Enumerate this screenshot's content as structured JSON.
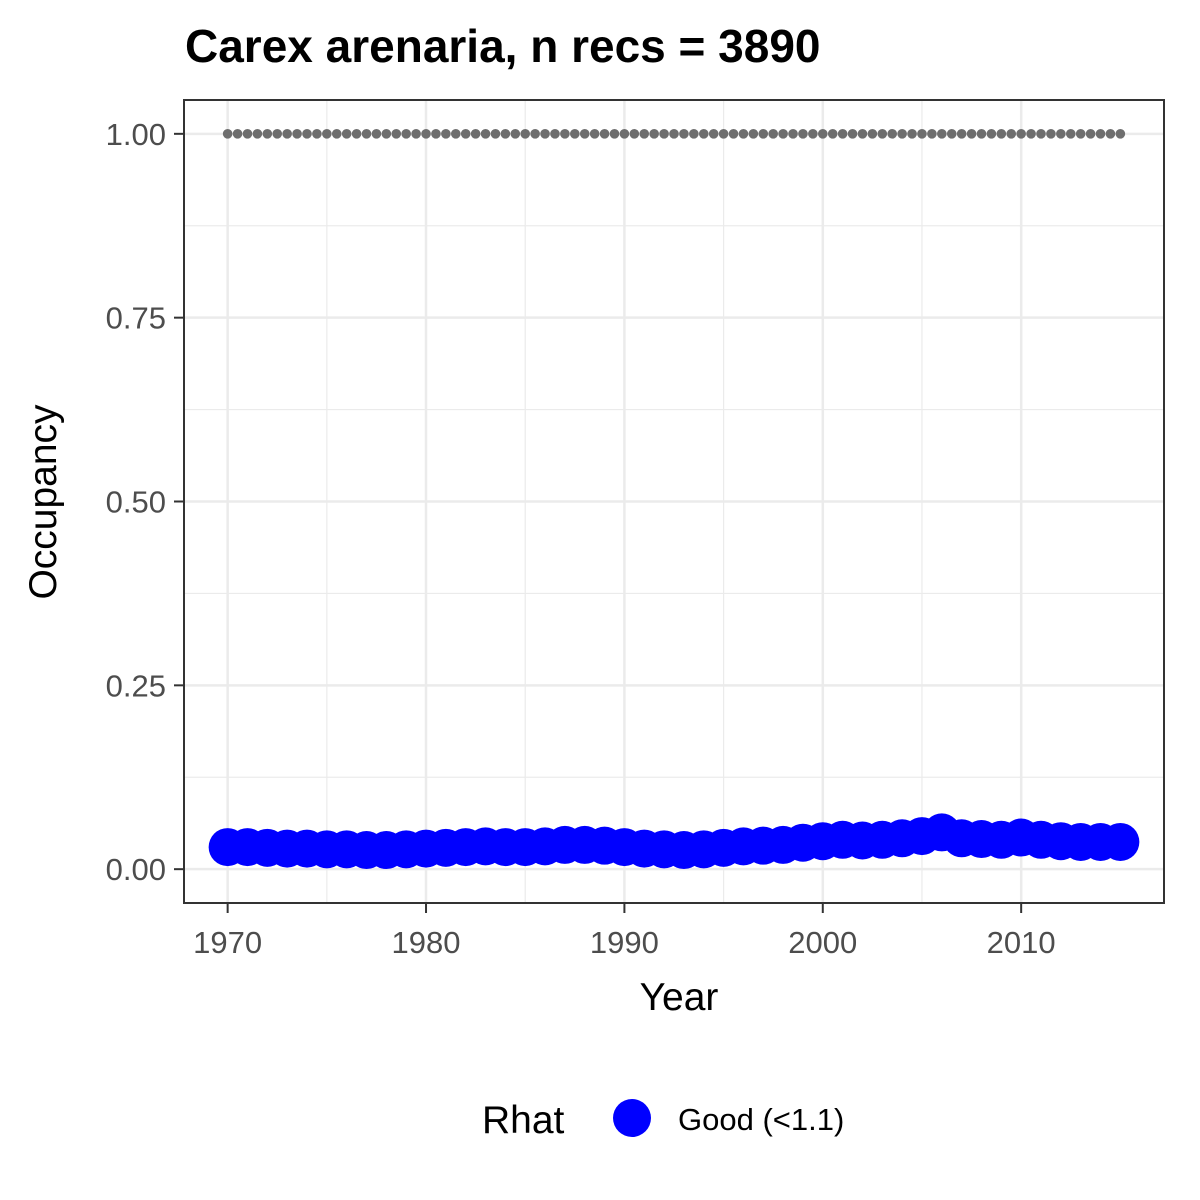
{
  "chart_data": {
    "type": "scatter",
    "title": "Carex arenaria, n recs = 3890",
    "xlabel": "Year",
    "ylabel": "Occupancy",
    "xlim": [
      1967.8,
      2017.2
    ],
    "ylim": [
      -0.046,
      1.046
    ],
    "x_ticks": [
      1970,
      1980,
      1990,
      2000,
      2010
    ],
    "x_tick_labels": [
      "1970",
      "1980",
      "1990",
      "2000",
      "2010"
    ],
    "y_ticks": [
      0,
      0.25,
      0.5,
      0.75,
      1.0
    ],
    "y_tick_labels": [
      "0.00",
      "0.25",
      "0.50",
      "0.75",
      "1.00"
    ],
    "grid": true,
    "legend": {
      "title": "Rhat",
      "position": "bottom",
      "entries": [
        {
          "label": "Good (<1.1)",
          "color": "#0000ff"
        }
      ]
    },
    "colors": {
      "points": "#0000ff",
      "reference": "#6e6e6e",
      "grid": "#ebebeb",
      "panel_border": "#333333"
    },
    "series": [
      {
        "name": "Good (<1.1)",
        "style": "points",
        "x": [
          1970,
          1971,
          1972,
          1973,
          1974,
          1975,
          1976,
          1977,
          1978,
          1979,
          1980,
          1981,
          1982,
          1983,
          1984,
          1985,
          1986,
          1987,
          1988,
          1989,
          1990,
          1991,
          1992,
          1993,
          1994,
          1995,
          1996,
          1997,
          1998,
          1999,
          2000,
          2001,
          2002,
          2003,
          2004,
          2005,
          2006,
          2007,
          2008,
          2009,
          2010,
          2011,
          2012,
          2013,
          2014,
          2015
        ],
        "y": [
          0.03,
          0.03,
          0.029,
          0.028,
          0.028,
          0.027,
          0.027,
          0.026,
          0.026,
          0.027,
          0.028,
          0.029,
          0.03,
          0.031,
          0.03,
          0.03,
          0.031,
          0.033,
          0.033,
          0.032,
          0.03,
          0.028,
          0.027,
          0.026,
          0.027,
          0.029,
          0.031,
          0.032,
          0.033,
          0.036,
          0.038,
          0.04,
          0.039,
          0.04,
          0.042,
          0.045,
          0.05,
          0.042,
          0.041,
          0.04,
          0.043,
          0.04,
          0.038,
          0.037,
          0.037,
          0.037
        ]
      },
      {
        "style": "dotted-line",
        "x": [
          1970,
          1971,
          1972,
          1973,
          1974,
          1975,
          1976,
          1977,
          1978,
          1979,
          1980,
          1981,
          1982,
          1983,
          1984,
          1985,
          1986,
          1987,
          1988,
          1989,
          1990,
          1991,
          1992,
          1993,
          1994,
          1995,
          1996,
          1997,
          1998,
          1999,
          2000,
          2001,
          2002,
          2003,
          2004,
          2005,
          2006,
          2007,
          2008,
          2009,
          2010,
          2011,
          2012,
          2013,
          2014,
          2015
        ],
        "y": [
          1,
          1,
          1,
          1,
          1,
          1,
          1,
          1,
          1,
          1,
          1,
          1,
          1,
          1,
          1,
          1,
          1,
          1,
          1,
          1,
          1,
          1,
          1,
          1,
          1,
          1,
          1,
          1,
          1,
          1,
          1,
          1,
          1,
          1,
          1,
          1,
          1,
          1,
          1,
          1,
          1,
          1,
          1,
          1,
          1,
          1
        ]
      }
    ]
  }
}
